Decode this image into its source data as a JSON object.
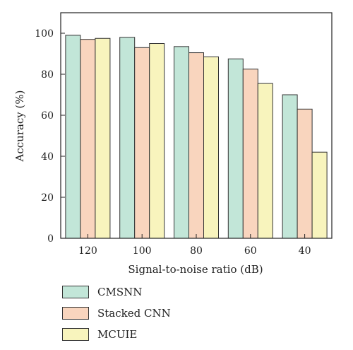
{
  "chart_data": {
    "type": "bar",
    "title": "",
    "xlabel": "Signal-to-noise ratio (dB)",
    "ylabel": "Accuracy (%)",
    "ylim": [
      0,
      110
    ],
    "yticks": [
      0,
      20,
      40,
      60,
      80,
      100
    ],
    "categories": [
      "120",
      "100",
      "80",
      "60",
      "40"
    ],
    "series": [
      {
        "name": "CMSNN",
        "color": "#c2e6d8",
        "values": [
          99,
          98,
          93.5,
          87.5,
          70
        ]
      },
      {
        "name": "Stacked CNN",
        "color": "#f9d5be",
        "values": [
          97,
          93,
          90.5,
          82.5,
          63
        ]
      },
      {
        "name": "MCUIE",
        "color": "#f8f4bd",
        "values": [
          97.5,
          95,
          88.5,
          75.5,
          42
        ]
      }
    ],
    "legend": "bottom-left",
    "grid": false
  }
}
